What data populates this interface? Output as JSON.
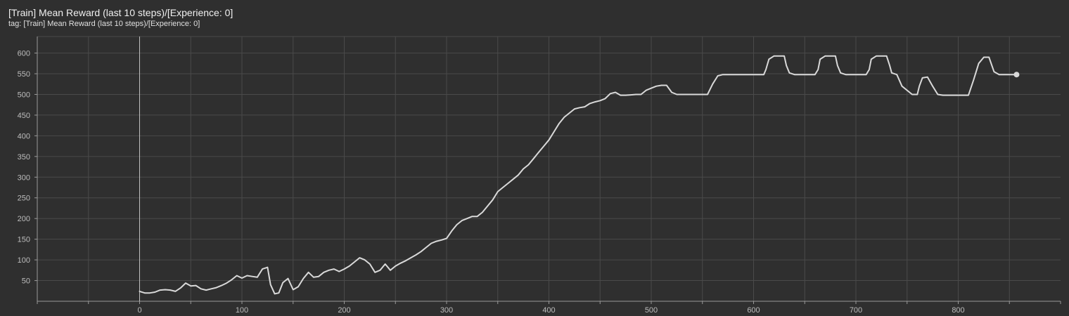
{
  "card": {
    "title": "[Train] Mean Reward (last 10 steps)/[Experience: 0]",
    "tag": "tag: [Train] Mean Reward (last 10 steps)/[Experience: 0]"
  },
  "colors": {
    "background": "#2f2f2f",
    "grid": "#4a4a4a",
    "axis": "#9a9a9a",
    "smoothed_line": "#d9d9d9",
    "raw_line": "#8a8a8a"
  },
  "chart_data": {
    "type": "line",
    "title": "",
    "xlabel": "",
    "ylabel": "",
    "xlim": [
      -100,
      900
    ],
    "ylim": [
      0,
      640
    ],
    "x_ticks": [
      0,
      100,
      200,
      300,
      400,
      500,
      600,
      700,
      800
    ],
    "y_ticks": [
      50,
      100,
      150,
      200,
      250,
      300,
      350,
      400,
      450,
      500,
      550,
      600
    ],
    "grid": true,
    "legend": "none",
    "series": [
      {
        "x": [
          0,
          5,
          10,
          15,
          20,
          25,
          30,
          35,
          40,
          45,
          50,
          55,
          60,
          65,
          70,
          75,
          80,
          85,
          90,
          95,
          100,
          105,
          110,
          115,
          120,
          125,
          128,
          132,
          136,
          140,
          145,
          150,
          155,
          160,
          165,
          170,
          175,
          180,
          185,
          190,
          195,
          200,
          205,
          210,
          215,
          220,
          225,
          230,
          235,
          240,
          245,
          250,
          255,
          260,
          265,
          270,
          275,
          280,
          285,
          290,
          295,
          300,
          305,
          310,
          315,
          320,
          325,
          330,
          335,
          340,
          345,
          350,
          355,
          360,
          365,
          370,
          375,
          380,
          385,
          390,
          395,
          400,
          405,
          410,
          415,
          420,
          425,
          430,
          435,
          440,
          445,
          450,
          455,
          460,
          465,
          470,
          475,
          480,
          485,
          490,
          495,
          500,
          505,
          510,
          515,
          520,
          525,
          530,
          540,
          550,
          555,
          560,
          565,
          570,
          580,
          590,
          600,
          605,
          610,
          612,
          615,
          620,
          625,
          630,
          632,
          635,
          640,
          650,
          655,
          660,
          663,
          665,
          670,
          675,
          680,
          682,
          685,
          690,
          700,
          705,
          710,
          713,
          715,
          720,
          725,
          730,
          733,
          735,
          740,
          745,
          755,
          760,
          762,
          765,
          770,
          775,
          780,
          785,
          795,
          805,
          810,
          815,
          820,
          825,
          830,
          835,
          840,
          850,
          857
        ],
        "values": [
          24,
          20,
          20,
          22,
          27,
          28,
          27,
          24,
          32,
          44,
          37,
          38,
          30,
          27,
          30,
          33,
          38,
          44,
          52,
          62,
          56,
          62,
          60,
          58,
          78,
          82,
          40,
          18,
          20,
          45,
          55,
          28,
          35,
          55,
          70,
          58,
          60,
          70,
          75,
          78,
          72,
          78,
          85,
          95,
          105,
          100,
          90,
          70,
          75,
          90,
          75,
          85,
          92,
          98,
          105,
          112,
          120,
          130,
          140,
          145,
          148,
          152,
          170,
          185,
          195,
          200,
          205,
          205,
          215,
          230,
          245,
          265,
          275,
          285,
          295,
          305,
          320,
          330,
          345,
          360,
          375,
          390,
          410,
          430,
          445,
          455,
          465,
          468,
          470,
          478,
          482,
          485,
          490,
          502,
          505,
          498,
          498,
          499,
          500,
          500,
          510,
          515,
          520,
          522,
          522,
          505,
          500,
          500,
          500,
          500,
          500,
          525,
          545,
          548,
          548,
          548,
          548,
          548,
          548,
          560,
          585,
          593,
          593,
          593,
          570,
          552,
          548,
          548,
          548,
          548,
          560,
          585,
          593,
          593,
          593,
          570,
          552,
          548,
          548,
          548,
          548,
          560,
          585,
          593,
          593,
          593,
          570,
          552,
          548,
          520,
          500,
          500,
          520,
          540,
          542,
          520,
          500,
          498,
          498,
          498,
          498,
          535,
          575,
          590,
          590,
          555,
          548,
          548,
          548
        ]
      }
    ]
  }
}
